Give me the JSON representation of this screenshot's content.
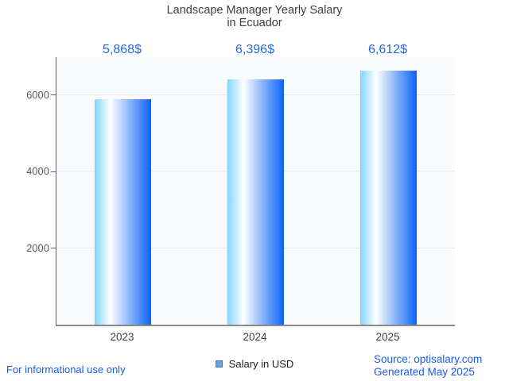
{
  "title": {
    "line1": "Landscape Manager Yearly Salary",
    "line2": "in Ecuador"
  },
  "chart_data": {
    "type": "bar",
    "categories": [
      "2023",
      "2024",
      "2025"
    ],
    "values": [
      5868,
      6396,
      6612
    ],
    "value_labels": [
      "5,868$",
      "6,396$",
      "6,612$"
    ],
    "series_name": "Salary in USD",
    "title": "Landscape Manager Yearly Salary in Ecuador",
    "xlabel": "",
    "ylabel": "",
    "yticks": [
      2000,
      4000,
      6000
    ],
    "ylim": [
      0,
      6970
    ],
    "grid": true,
    "legend_position": "bottom-center",
    "bar_gradient": [
      "#82d5fe",
      "#ffffff",
      "#0b63f6"
    ]
  },
  "legend": {
    "label": "Salary in USD",
    "swatch_fill": "#6aa1e3",
    "swatch_border": "#3a76d2"
  },
  "footer": {
    "left_note": "For informational use only",
    "source": "Source: optisalary.com",
    "generated": "Generated May 2025"
  },
  "colors": {
    "value_label": "#2468e0",
    "footer_text": "#1a5be6",
    "title_text": "#3a3f44",
    "tick_label": "#565b60",
    "grid_line": "#e6e8eb",
    "plot_background": "#fafbfd",
    "axis_line": "#8a8a8a"
  }
}
